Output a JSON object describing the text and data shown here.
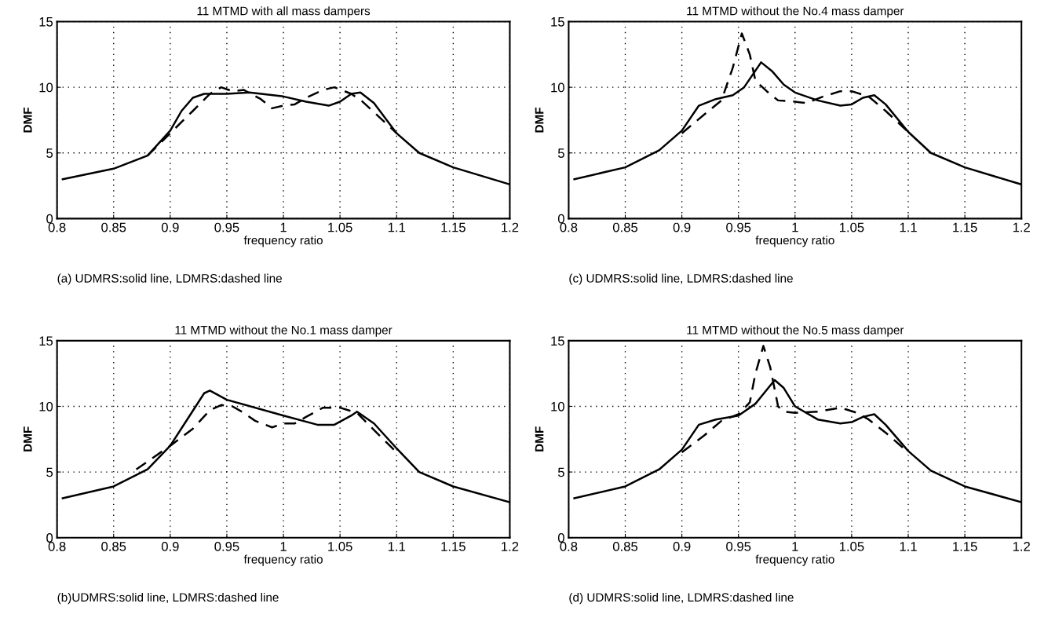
{
  "chart_data": [
    {
      "type": "line",
      "title": "11 MTMD with all mass dampers",
      "xlabel": "frequency ratio",
      "ylabel": "DMF",
      "xlim": [
        0.8,
        1.2
      ],
      "ylim": [
        0,
        15
      ],
      "xticks": [
        0.8,
        0.85,
        0.9,
        0.95,
        1,
        1.05,
        1.1,
        1.15,
        1.2
      ],
      "yticks": [
        0,
        5,
        10,
        15
      ],
      "grid": true,
      "annotations": [
        "(a) UDMRS:solid line, LDMRS:dashed line"
      ],
      "series": [
        {
          "color": "#000000",
          "line_style": "solid",
          "x": [
            0.805,
            0.85,
            0.88,
            0.9,
            0.91,
            0.92,
            0.93,
            0.95,
            0.97,
            1.0,
            1.02,
            1.04,
            1.05,
            1.06,
            1.068,
            1.08,
            1.1,
            1.12,
            1.15,
            1.2
          ],
          "values": [
            3.0,
            3.8,
            4.8,
            6.7,
            8.2,
            9.2,
            9.5,
            9.5,
            9.6,
            9.3,
            8.9,
            8.6,
            8.9,
            9.5,
            9.6,
            8.8,
            6.5,
            5.0,
            3.9,
            2.6
          ]
        },
        {
          "color": "#000000",
          "line_style": "dashed",
          "x": [
            0.88,
            0.9,
            0.92,
            0.935,
            0.945,
            0.955,
            0.965,
            0.98,
            0.99,
            1.0,
            1.01,
            1.02,
            1.035,
            1.045,
            1.06,
            1.07,
            1.09,
            1.1
          ],
          "values": [
            4.8,
            6.5,
            8.2,
            9.5,
            10.0,
            9.7,
            9.8,
            9.1,
            8.4,
            8.6,
            8.7,
            9.2,
            9.8,
            10.0,
            9.5,
            8.9,
            7.3,
            6.5
          ]
        }
      ]
    },
    {
      "type": "line",
      "title": "11 MTMD without the No.4 mass damper",
      "xlabel": "frequency ratio",
      "ylabel": "DMF",
      "xlim": [
        0.8,
        1.2
      ],
      "ylim": [
        0,
        15
      ],
      "xticks": [
        0.8,
        0.85,
        0.9,
        0.95,
        1,
        1.05,
        1.1,
        1.15,
        1.2
      ],
      "yticks": [
        0,
        5,
        10,
        15
      ],
      "grid": true,
      "annotations": [
        "(c) UDMRS:solid line, LDMRS:dashed line"
      ],
      "series": [
        {
          "color": "#000000",
          "line_style": "solid",
          "x": [
            0.805,
            0.85,
            0.88,
            0.9,
            0.915,
            0.93,
            0.945,
            0.955,
            0.97,
            0.98,
            0.99,
            1.0,
            1.02,
            1.04,
            1.05,
            1.06,
            1.07,
            1.08,
            1.1,
            1.12,
            1.15,
            1.2
          ],
          "values": [
            3.0,
            3.9,
            5.2,
            6.7,
            8.6,
            9.1,
            9.4,
            10.0,
            11.9,
            11.2,
            10.2,
            9.6,
            9.0,
            8.6,
            8.7,
            9.2,
            9.4,
            8.7,
            6.6,
            5.0,
            3.9,
            2.6
          ]
        },
        {
          "color": "#000000",
          "line_style": "dashed",
          "x": [
            0.9,
            0.925,
            0.935,
            0.945,
            0.953,
            0.96,
            0.965,
            0.975,
            0.985,
            1.0,
            1.01,
            1.025,
            1.04,
            1.05,
            1.065,
            1.08,
            1.1
          ],
          "values": [
            6.5,
            8.3,
            9.0,
            11.5,
            14.1,
            12.5,
            10.5,
            9.7,
            9.0,
            8.9,
            8.8,
            9.3,
            9.7,
            9.7,
            9.3,
            8.2,
            6.6
          ]
        }
      ]
    },
    {
      "type": "line",
      "title": "11 MTMD without the No.1 mass damper",
      "xlabel": "frequency ratio",
      "ylabel": "DMF",
      "xlim": [
        0.8,
        1.2
      ],
      "ylim": [
        0,
        15
      ],
      "xticks": [
        0.8,
        0.85,
        0.9,
        0.95,
        1,
        1.05,
        1.1,
        1.15,
        1.2
      ],
      "yticks": [
        0,
        5,
        10,
        15
      ],
      "grid": true,
      "annotations": [
        "(b)UDMRS:solid line, LDMRS:dashed line"
      ],
      "series": [
        {
          "color": "#000000",
          "line_style": "solid",
          "x": [
            0.805,
            0.85,
            0.88,
            0.9,
            0.915,
            0.93,
            0.935,
            0.95,
            1.0,
            1.03,
            1.045,
            1.06,
            1.065,
            1.08,
            1.1,
            1.12,
            1.15,
            1.2
          ],
          "values": [
            3.0,
            3.9,
            5.2,
            7.0,
            9.0,
            11.0,
            11.2,
            10.5,
            9.3,
            8.6,
            8.6,
            9.3,
            9.6,
            8.7,
            6.8,
            5.0,
            3.9,
            2.7
          ]
        },
        {
          "color": "#000000",
          "line_style": "dashed",
          "x": [
            0.87,
            0.9,
            0.92,
            0.935,
            0.945,
            0.955,
            0.965,
            0.975,
            0.99,
            1.0,
            1.01,
            1.02,
            1.035,
            1.05,
            1.065,
            1.08,
            1.1
          ],
          "values": [
            5.2,
            7.0,
            8.3,
            9.7,
            10.1,
            10.0,
            9.5,
            8.9,
            8.4,
            8.7,
            8.7,
            9.2,
            9.9,
            9.9,
            9.5,
            8.2,
            6.5
          ]
        }
      ]
    },
    {
      "type": "line",
      "title": "11 MTMD without the No.5 mass damper",
      "xlabel": "frequency ratio",
      "ylabel": "DMF",
      "xlim": [
        0.8,
        1.2
      ],
      "ylim": [
        0,
        15
      ],
      "xticks": [
        0.8,
        0.85,
        0.9,
        0.95,
        1,
        1.05,
        1.1,
        1.15,
        1.2
      ],
      "yticks": [
        0,
        5,
        10,
        15
      ],
      "grid": true,
      "annotations": [
        "(d) UDMRS:solid line, LDMRS:dashed line"
      ],
      "series": [
        {
          "color": "#000000",
          "line_style": "solid",
          "x": [
            0.805,
            0.85,
            0.88,
            0.9,
            0.915,
            0.93,
            0.95,
            0.965,
            0.982,
            0.99,
            1.0,
            1.02,
            1.04,
            1.05,
            1.06,
            1.07,
            1.08,
            1.1,
            1.12,
            1.15,
            1.2
          ],
          "values": [
            3.0,
            3.9,
            5.2,
            6.7,
            8.6,
            9.0,
            9.3,
            10.2,
            12.0,
            11.4,
            10.0,
            9.0,
            8.7,
            8.8,
            9.2,
            9.4,
            8.6,
            6.6,
            5.1,
            3.9,
            2.7
          ]
        },
        {
          "color": "#000000",
          "line_style": "dashed",
          "x": [
            0.9,
            0.92,
            0.935,
            0.95,
            0.96,
            0.965,
            0.972,
            0.978,
            0.985,
            0.99,
            1.0,
            1.02,
            1.04,
            1.055,
            1.065,
            1.08,
            1.1
          ],
          "values": [
            6.5,
            7.8,
            8.9,
            9.4,
            10.3,
            12.5,
            14.6,
            13.0,
            10.0,
            9.6,
            9.5,
            9.6,
            9.9,
            9.5,
            9.0,
            8.0,
            6.5
          ]
        }
      ]
    }
  ]
}
